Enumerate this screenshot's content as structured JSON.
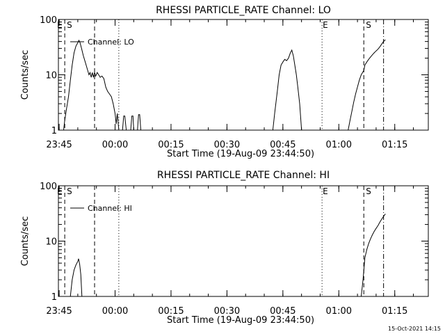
{
  "footer_date": "15-Oct-2021 14:15",
  "chart_data": [
    {
      "type": "line",
      "title": "RHESSI PARTICLE_RATE Channel: LO",
      "xlabel": "Start Time (19-Aug-09 23:44:50)",
      "ylabel": "Counts/sec",
      "yscale": "log",
      "ylim": [
        1,
        100
      ],
      "y_ticks": [
        1,
        10,
        100
      ],
      "y_tick_labels": [
        "1",
        "10",
        "100"
      ],
      "x_unit": "minutes after 23:45",
      "xlim": [
        -0.2,
        99
      ],
      "x_ticks": [
        0,
        15,
        30,
        45,
        60,
        75,
        90
      ],
      "x_tick_labels": [
        "23:45",
        "00:00",
        "00:15",
        "00:30",
        "00:45",
        "01:00",
        "01:15"
      ],
      "legend": "Channel: LO",
      "markers": [
        {
          "x": 1.5,
          "style": "dashed",
          "label": "S"
        },
        {
          "x": 9.5,
          "style": "dashed",
          "label": ""
        },
        {
          "x": 16.0,
          "style": "dotted",
          "label": ""
        },
        {
          "x": 70.5,
          "style": "dotted",
          "label": "E"
        },
        {
          "x": 81.7,
          "style": "dashed",
          "label": "S"
        },
        {
          "x": 87.0,
          "style": "dashdot",
          "label": ""
        }
      ],
      "marker_left_label": "E",
      "series": [
        {
          "name": "Channel: LO",
          "segments": [
            [
              [
                1.2,
                1
              ],
              [
                1.5,
                1.5
              ],
              [
                2,
                2.5
              ],
              [
                2.5,
                4
              ],
              [
                3,
                8
              ],
              [
                3.5,
                15
              ],
              [
                4,
                25
              ],
              [
                4.5,
                33
              ],
              [
                5,
                38
              ],
              [
                5.3,
                42
              ],
              [
                5.6,
                38
              ],
              [
                6,
                30
              ],
              [
                6.5,
                22
              ],
              [
                7,
                17
              ],
              [
                7.5,
                13
              ],
              [
                8,
                10
              ],
              [
                8.3,
                11
              ],
              [
                8.6,
                9
              ],
              [
                8.9,
                11
              ],
              [
                9.2,
                9
              ],
              [
                9.5,
                11
              ],
              [
                9.8,
                9.5
              ],
              [
                10.2,
                11
              ],
              [
                10.6,
                10
              ],
              [
                11,
                9
              ],
              [
                11.5,
                9.5
              ],
              [
                12,
                8.5
              ],
              [
                12.5,
                6
              ],
              [
                13,
                5
              ],
              [
                13.5,
                4.5
              ],
              [
                14,
                4
              ],
              [
                14.5,
                3
              ],
              [
                15,
                2
              ],
              [
                15.3,
                1.3
              ],
              [
                15.6,
                2
              ],
              [
                16,
                1
              ]
            ],
            [
              [
                17,
                1
              ],
              [
                17.3,
                1.8
              ],
              [
                17.6,
                1.8
              ],
              [
                18,
                1
              ]
            ],
            [
              [
                19.2,
                1
              ],
              [
                19.5,
                1.8
              ],
              [
                19.8,
                1.8
              ],
              [
                20,
                1
              ]
            ],
            [
              [
                21,
                1
              ],
              [
                21.3,
                1.9
              ],
              [
                21.6,
                1.9
              ],
              [
                21.9,
                1
              ]
            ],
            [
              [
                57.3,
                1
              ],
              [
                57.8,
                2
              ],
              [
                58.5,
                5
              ],
              [
                59,
                10
              ],
              [
                59.5,
                15
              ],
              [
                60,
                17
              ],
              [
                60.5,
                19
              ],
              [
                61,
                18
              ],
              [
                61.5,
                20
              ],
              [
                62,
                25
              ],
              [
                62.4,
                28
              ],
              [
                62.8,
                22
              ],
              [
                63.2,
                15
              ],
              [
                63.6,
                10
              ],
              [
                64,
                6
              ],
              [
                64.5,
                3
              ],
              [
                65,
                1
              ]
            ],
            [
              [
                77.5,
                1
              ],
              [
                78,
                1.5
              ],
              [
                78.5,
                2.2
              ],
              [
                79,
                3.2
              ],
              [
                79.5,
                4.5
              ],
              [
                80,
                6
              ],
              [
                80.5,
                8
              ],
              [
                81,
                10
              ],
              [
                81.7,
                12
              ],
              [
                82,
                15
              ],
              [
                82.5,
                17
              ],
              [
                83,
                19
              ],
              [
                83.5,
                21
              ],
              [
                84,
                23
              ],
              [
                84.5,
                25
              ],
              [
                85,
                27
              ],
              [
                85.5,
                29
              ],
              [
                86,
                32
              ],
              [
                86.5,
                36
              ],
              [
                87,
                40
              ],
              [
                87.5,
                43
              ]
            ]
          ]
        }
      ]
    },
    {
      "type": "line",
      "title": "RHESSI PARTICLE_RATE Channel: HI",
      "xlabel": "Start Time (19-Aug-09 23:44:50)",
      "ylabel": "Counts/sec",
      "yscale": "log",
      "ylim": [
        1,
        100
      ],
      "y_ticks": [
        1,
        10,
        100
      ],
      "y_tick_labels": [
        "1",
        "10",
        "100"
      ],
      "x_unit": "minutes after 23:45",
      "xlim": [
        -0.2,
        99
      ],
      "x_ticks": [
        0,
        15,
        30,
        45,
        60,
        75,
        90
      ],
      "x_tick_labels": [
        "23:45",
        "00:00",
        "00:15",
        "00:30",
        "00:45",
        "01:00",
        "01:15"
      ],
      "legend": "Channel: HI",
      "markers": [
        {
          "x": 1.5,
          "style": "dashed",
          "label": "S"
        },
        {
          "x": 9.5,
          "style": "dashed",
          "label": ""
        },
        {
          "x": 16.0,
          "style": "dotted",
          "label": ""
        },
        {
          "x": 70.5,
          "style": "dotted",
          "label": "E"
        },
        {
          "x": 81.7,
          "style": "dashed",
          "label": "S"
        },
        {
          "x": 87.0,
          "style": "dashdot",
          "label": ""
        }
      ],
      "marker_left_label": "E",
      "series": [
        {
          "name": "Channel: HI",
          "segments": [
            [
              [
                3,
                1
              ],
              [
                3.5,
                2
              ],
              [
                4,
                3
              ],
              [
                4.5,
                3.7
              ],
              [
                5,
                4.3
              ],
              [
                5.2,
                4.8
              ],
              [
                5.5,
                3.8
              ],
              [
                5.8,
                2.5
              ],
              [
                6.1,
                1
              ]
            ],
            [
              [
                81,
                1
              ],
              [
                81.5,
                2
              ],
              [
                82,
                5
              ],
              [
                82.5,
                7
              ],
              [
                83,
                9
              ],
              [
                83.5,
                11
              ],
              [
                84,
                13
              ],
              [
                84.5,
                15
              ],
              [
                85,
                17
              ],
              [
                85.5,
                19
              ],
              [
                86,
                22
              ],
              [
                86.5,
                25
              ],
              [
                87,
                28
              ],
              [
                87.5,
                31
              ]
            ]
          ]
        }
      ]
    }
  ]
}
